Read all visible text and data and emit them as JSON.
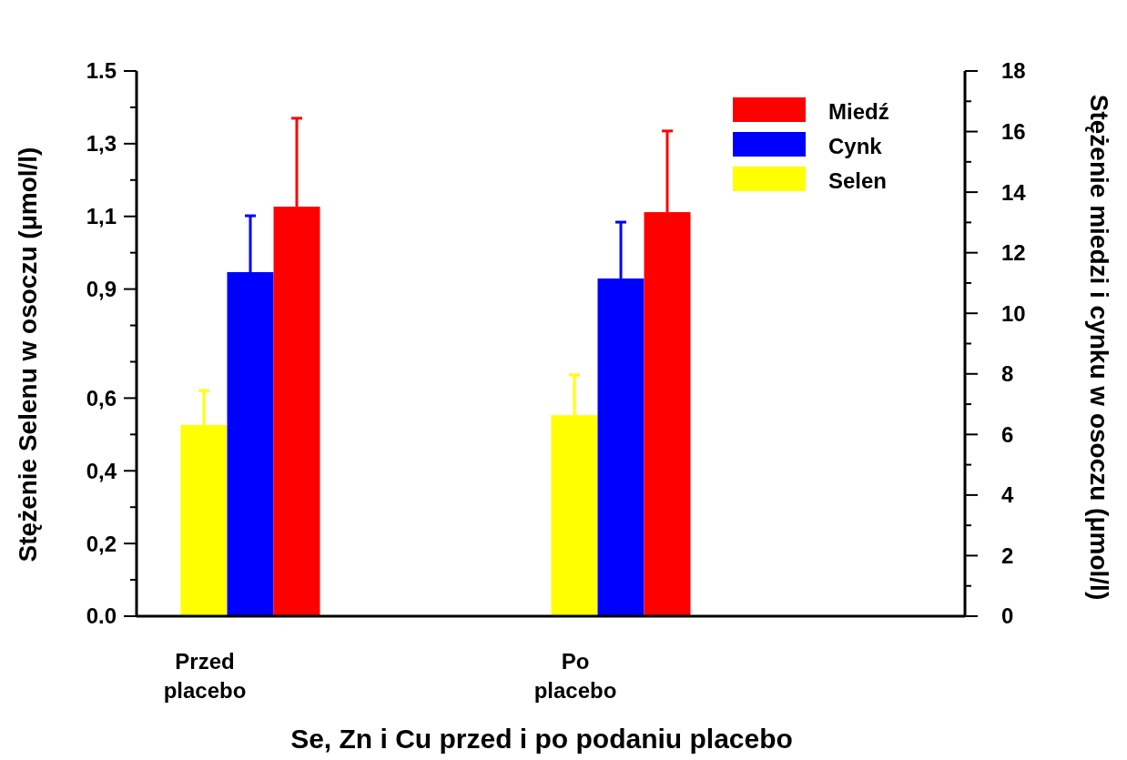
{
  "chart_data": {
    "type": "bar",
    "xlabel": "Se, Zn i Cu przed i po podaniu placebo",
    "ylabel": "Stężenie Selenu w osoczu (μmol/l)",
    "y2label": "Stężenie miedzi i cynku w osoczu (μmol/l)",
    "categories": [
      "Przed placebo",
      "Po placebo"
    ],
    "series": [
      {
        "name": "Selen",
        "color": "#ffff00",
        "values": [
          0.526,
          0.553
        ],
        "errors": [
          [
            0.526,
            0.621
          ],
          [
            0.553,
            0.664
          ]
        ]
      },
      {
        "name": "Cynk",
        "color": "#0000ff",
        "values": [
          11.36,
          11.15
        ],
        "axis": "y2",
        "errors": [
          [
            11.36,
            13.22
          ],
          [
            11.15,
            13.01
          ]
        ]
      },
      {
        "name": "Miedź",
        "color": "#ff0000",
        "values": [
          13.52,
          13.34
        ],
        "axis": "y2",
        "errors": [
          [
            13.52,
            16.44
          ],
          [
            13.34,
            16.02
          ]
        ]
      }
    ],
    "ylim": [
      0,
      1.5
    ],
    "yticks": [
      {
        "value": 0,
        "label": "0.0"
      },
      {
        "value": 0.1,
        "label": null
      },
      {
        "value": 0.2,
        "label": "0,2"
      },
      {
        "value": 0.3,
        "label": null
      },
      {
        "value": 0.4,
        "label": "0,4"
      },
      {
        "value": 0.5,
        "label": null
      },
      {
        "value": 0.6,
        "label": "0,6"
      },
      {
        "value": 0.7,
        "label": null
      },
      {
        "value": 0.8,
        "label": null
      },
      {
        "value": 0.9,
        "label": "0,9"
      },
      {
        "value": 1.0,
        "label": null
      },
      {
        "value": 1.1,
        "label": "1,1"
      },
      {
        "value": 1.2,
        "label": null
      },
      {
        "value": 1.3,
        "label": "1,3"
      },
      {
        "value": 1.4,
        "label": null
      },
      {
        "value": 1.5,
        "label": "1.5"
      }
    ],
    "y2lim": [
      0,
      18
    ],
    "y2ticks": [
      0,
      {
        "value": 1,
        "label": null
      },
      2,
      {
        "value": 3,
        "label": null
      },
      4,
      {
        "value": 5,
        "label": null
      },
      6,
      {
        "value": 7,
        "label": null
      },
      8,
      {
        "value": 9,
        "label": null
      },
      10,
      {
        "value": 11,
        "label": null
      },
      12,
      {
        "value": 13,
        "label": null
      },
      14,
      {
        "value": 15,
        "label": null
      },
      16,
      {
        "value": 17,
        "label": null
      },
      18
    ],
    "legend": "top right",
    "grid": false
  }
}
